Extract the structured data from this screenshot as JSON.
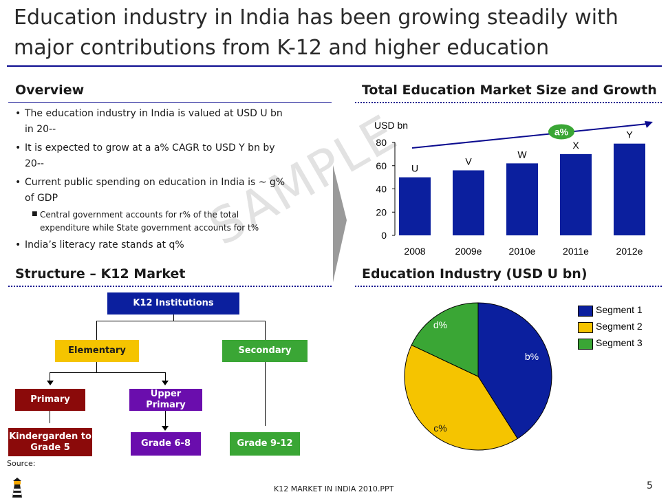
{
  "slide": {
    "title": "Education industry in India has been growing steadily with major contributions from K-12 and higher education",
    "footer": "K12 MARKET IN INDIA 2010.PPT",
    "page_number": "5",
    "source": "Source:",
    "watermark": "SAMPLE"
  },
  "overview": {
    "heading": "Overview",
    "bullets": [
      {
        "line1": "The education industry in India is valued at USD U bn",
        "line2": "in 20--"
      },
      {
        "line1": "It is expected to grow at a a% CAGR to USD Y bn by",
        "line2": "20--"
      },
      {
        "line1": "Current public spending on education in India is ~ g%",
        "line2": "of GDP"
      }
    ],
    "sub_bullet": {
      "line1": "Central government accounts for r% of the total",
      "line2": "expenditure while State government accounts for t%"
    },
    "last_bullet": "India’s literacy rate stands at q%"
  },
  "structure": {
    "heading": "Structure – K12 Market",
    "root": "K12 Institutions",
    "elementary": "Elementary",
    "secondary": "Secondary",
    "primary": "Primary",
    "upper_primary": "Upper Primary",
    "kindergarden_line1": "Kindergarden to",
    "kindergarden_line2": "Grade 5",
    "grade_6_8": "Grade 6-8",
    "grade_9_12": "Grade 9-12"
  },
  "market_chart_heading": "Total Education Market Size and Growth",
  "industry_chart_heading": "Education Industry (USD U bn)",
  "colors": {
    "blue": "#0b1f9e",
    "yellow": "#f5c400",
    "green": "#3aa635",
    "darkred": "#8b0a0a",
    "purple": "#6a0dad",
    "navy": "#0b0b8f"
  },
  "chart_data": [
    {
      "type": "bar",
      "title": "Total Education Market Size and Growth",
      "ylabel": "USD bn",
      "categories": [
        "2008",
        "2009e",
        "2010e",
        "2011e",
        "2012e"
      ],
      "values": [
        50,
        56,
        62,
        70,
        79
      ],
      "data_labels": [
        "U",
        "V",
        "W",
        "X",
        "Y"
      ],
      "ylim": [
        0,
        80
      ],
      "yticks": [
        0,
        20,
        40,
        60,
        80
      ],
      "growth_label": "a%"
    },
    {
      "type": "pie",
      "title": "Education Industry (USD U bn)",
      "labels": [
        "Segment 1",
        "Segment 2",
        "Segment 3"
      ],
      "values": [
        41,
        41,
        18
      ],
      "slice_labels": [
        "b%",
        "c%",
        "d%"
      ],
      "colors": [
        "#0b1f9e",
        "#f5c400",
        "#3aa635"
      ],
      "legend_position": "top-right"
    }
  ]
}
